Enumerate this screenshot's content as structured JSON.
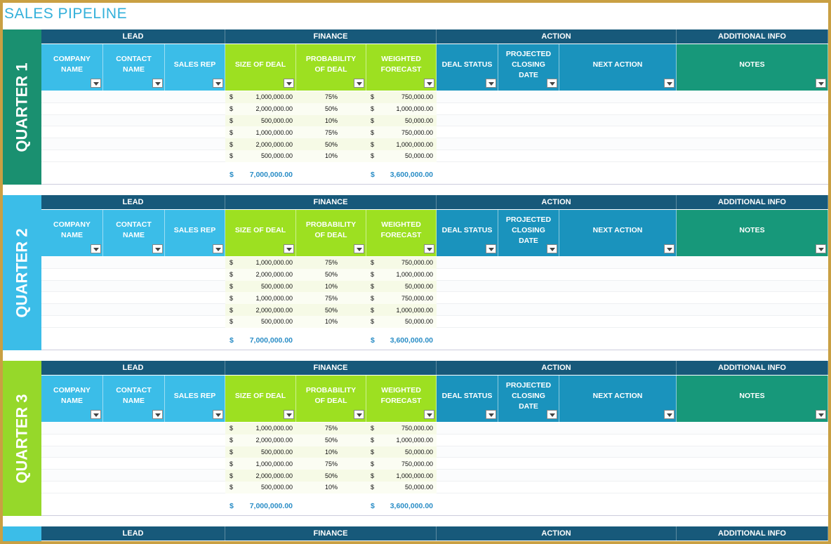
{
  "header": {
    "title": "SALES PIPELINE"
  },
  "column_groups": [
    "LEAD",
    "FINANCE",
    "ACTION",
    "ADDITIONAL INFO"
  ],
  "columns": [
    "COMPANY NAME",
    "CONTACT NAME",
    "SALES REP",
    "SIZE OF DEAL",
    "PROBABILITY OF DEAL",
    "WEIGHTED FORECAST",
    "DEAL STATUS",
    "PROJECTED CLOSING DATE",
    "NEXT ACTION",
    "NOTES"
  ],
  "currency_symbol": "$",
  "quarters": [
    {
      "label": "QUARTER 1",
      "rows": [
        [
          "1,000,000.00",
          "75%",
          "750,000.00"
        ],
        [
          "2,000,000.00",
          "50%",
          "1,000,000.00"
        ],
        [
          "500,000.00",
          "10%",
          "50,000.00"
        ],
        [
          "1,000,000.00",
          "75%",
          "750,000.00"
        ],
        [
          "2,000,000.00",
          "50%",
          "1,000,000.00"
        ],
        [
          "500,000.00",
          "10%",
          "50,000.00"
        ]
      ],
      "total_deal": "7,000,000.00",
      "total_weighted": "3,600,000.00"
    },
    {
      "label": "QUARTER 2",
      "rows": [
        [
          "1,000,000.00",
          "75%",
          "750,000.00"
        ],
        [
          "2,000,000.00",
          "50%",
          "1,000,000.00"
        ],
        [
          "500,000.00",
          "10%",
          "50,000.00"
        ],
        [
          "1,000,000.00",
          "75%",
          "750,000.00"
        ],
        [
          "2,000,000.00",
          "50%",
          "1,000,000.00"
        ],
        [
          "500,000.00",
          "10%",
          "50,000.00"
        ]
      ],
      "total_deal": "7,000,000.00",
      "total_weighted": "3,600,000.00"
    },
    {
      "label": "QUARTER 3",
      "rows": [
        [
          "1,000,000.00",
          "75%",
          "750,000.00"
        ],
        [
          "2,000,000.00",
          "50%",
          "1,000,000.00"
        ],
        [
          "500,000.00",
          "10%",
          "50,000.00"
        ],
        [
          "1,000,000.00",
          "75%",
          "750,000.00"
        ],
        [
          "2,000,000.00",
          "50%",
          "1,000,000.00"
        ],
        [
          "500,000.00",
          "10%",
          "50,000.00"
        ]
      ],
      "total_deal": "7,000,000.00",
      "total_weighted": "3,600,000.00"
    }
  ]
}
